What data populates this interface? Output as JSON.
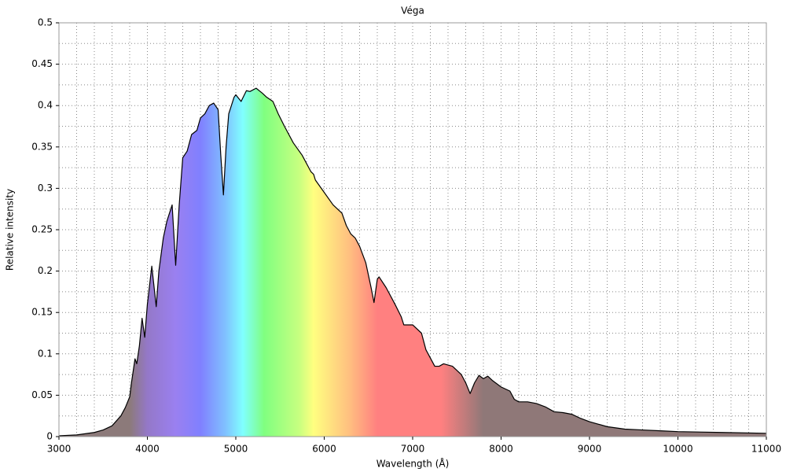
{
  "chart_data": {
    "type": "area",
    "title": "Véga",
    "xlabel": "Wavelength (Å)",
    "ylabel": "Relative intensity",
    "line_color": "#000000",
    "grid": true,
    "xlim": [
      3000,
      11000
    ],
    "ylim": [
      0,
      0.5
    ],
    "xticks": [
      3000,
      4000,
      5000,
      6000,
      7000,
      8000,
      9000,
      10000,
      11000
    ],
    "yticks": [
      0,
      0.05,
      0.1,
      0.15,
      0.2,
      0.25,
      0.3,
      0.35,
      0.4,
      0.45,
      0.5
    ],
    "xminorticks": [
      3200,
      3400,
      3600,
      3800,
      4200,
      4400,
      4600,
      4800,
      5200,
      5400,
      5600,
      5800,
      6200,
      6400,
      6600,
      6800,
      7200,
      7400,
      7600,
      7800,
      8200,
      8400,
      8600,
      8800,
      9200,
      9400,
      9600,
      9800,
      10200,
      10400,
      10600,
      10800
    ],
    "yminorticks": [
      0.025,
      0.075,
      0.125,
      0.175,
      0.225,
      0.275,
      0.325,
      0.375,
      0.425,
      0.475
    ],
    "x": [
      3000,
      3200,
      3400,
      3500,
      3600,
      3700,
      3750,
      3800,
      3820,
      3860,
      3880,
      3910,
      3940,
      3970,
      4000,
      4050,
      4100,
      4130,
      4180,
      4220,
      4280,
      4320,
      4360,
      4400,
      4450,
      4500,
      4560,
      4600,
      4650,
      4700,
      4750,
      4800,
      4830,
      4860,
      4890,
      4920,
      4980,
      5000,
      5060,
      5120,
      5160,
      5230,
      5300,
      5350,
      5420,
      5480,
      5550,
      5650,
      5750,
      5850,
      5880,
      5900,
      6000,
      6100,
      6200,
      6250,
      6300,
      6350,
      6400,
      6470,
      6530,
      6563,
      6600,
      6620,
      6700,
      6800,
      6870,
      6900,
      7000,
      7100,
      7150,
      7200,
      7250,
      7300,
      7350,
      7450,
      7550,
      7600,
      7650,
      7700,
      7750,
      7800,
      7850,
      7900,
      8000,
      8100,
      8150,
      8200,
      8300,
      8400,
      8500,
      8600,
      8700,
      8800,
      8900,
      9000,
      9200,
      9400,
      9600,
      9800,
      10000,
      10500,
      11000
    ],
    "values": [
      0.001,
      0.002,
      0.005,
      0.008,
      0.013,
      0.025,
      0.035,
      0.048,
      0.065,
      0.094,
      0.088,
      0.11,
      0.143,
      0.12,
      0.16,
      0.206,
      0.157,
      0.2,
      0.24,
      0.26,
      0.28,
      0.207,
      0.28,
      0.337,
      0.345,
      0.365,
      0.37,
      0.385,
      0.39,
      0.4,
      0.403,
      0.395,
      0.34,
      0.292,
      0.35,
      0.39,
      0.41,
      0.413,
      0.405,
      0.418,
      0.417,
      0.421,
      0.415,
      0.41,
      0.405,
      0.39,
      0.375,
      0.355,
      0.34,
      0.32,
      0.317,
      0.31,
      0.295,
      0.28,
      0.27,
      0.255,
      0.245,
      0.24,
      0.23,
      0.21,
      0.18,
      0.162,
      0.19,
      0.193,
      0.18,
      0.16,
      0.145,
      0.135,
      0.135,
      0.125,
      0.105,
      0.095,
      0.085,
      0.085,
      0.088,
      0.085,
      0.075,
      0.065,
      0.052,
      0.065,
      0.074,
      0.07,
      0.073,
      0.068,
      0.06,
      0.055,
      0.045,
      0.042,
      0.042,
      0.04,
      0.036,
      0.03,
      0.029,
      0.027,
      0.022,
      0.018,
      0.012,
      0.009,
      0.008,
      0.007,
      0.006,
      0.005,
      0.004
    ]
  }
}
